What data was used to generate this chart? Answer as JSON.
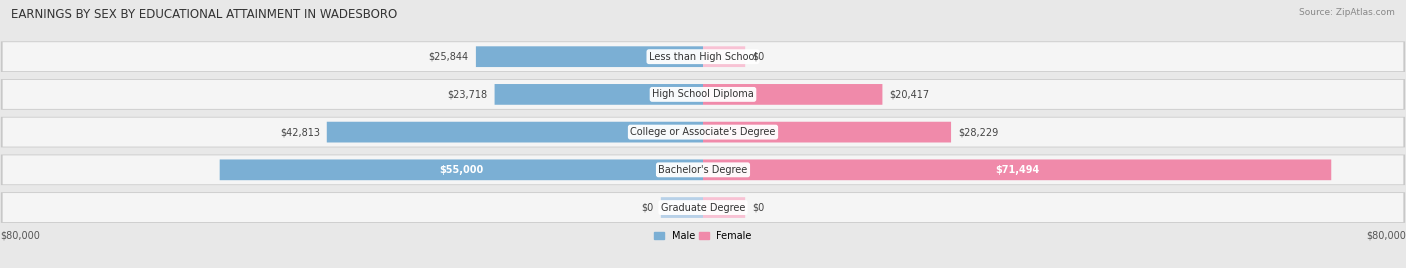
{
  "title": "EARNINGS BY SEX BY EDUCATIONAL ATTAINMENT IN WADESBORO",
  "source": "Source: ZipAtlas.com",
  "categories": [
    "Less than High School",
    "High School Diploma",
    "College or Associate's Degree",
    "Bachelor's Degree",
    "Graduate Degree"
  ],
  "male_values": [
    25844,
    23718,
    42813,
    55000,
    0
  ],
  "female_values": [
    0,
    20417,
    28229,
    71494,
    0
  ],
  "male_labels": [
    "$25,844",
    "$23,718",
    "$42,813",
    "$55,000",
    "$0"
  ],
  "female_labels": [
    "$0",
    "$20,417",
    "$28,229",
    "$71,494",
    "$0"
  ],
  "male_color": "#7bafd4",
  "female_color": "#f08aaa",
  "male_color_light": "#b8d1e8",
  "female_color_light": "#f8c2d4",
  "max_value": 80000,
  "axis_label_left": "$80,000",
  "axis_label_right": "$80,000",
  "legend_male": "Male",
  "legend_female": "Female",
  "bg_color": "#e8e8e8",
  "row_bg": "#f5f5f5",
  "row_highlight": "#dcdcdc",
  "title_fontsize": 8.5,
  "source_fontsize": 6.5,
  "bar_label_fontsize": 7,
  "category_fontsize": 7,
  "axis_fontsize": 7
}
